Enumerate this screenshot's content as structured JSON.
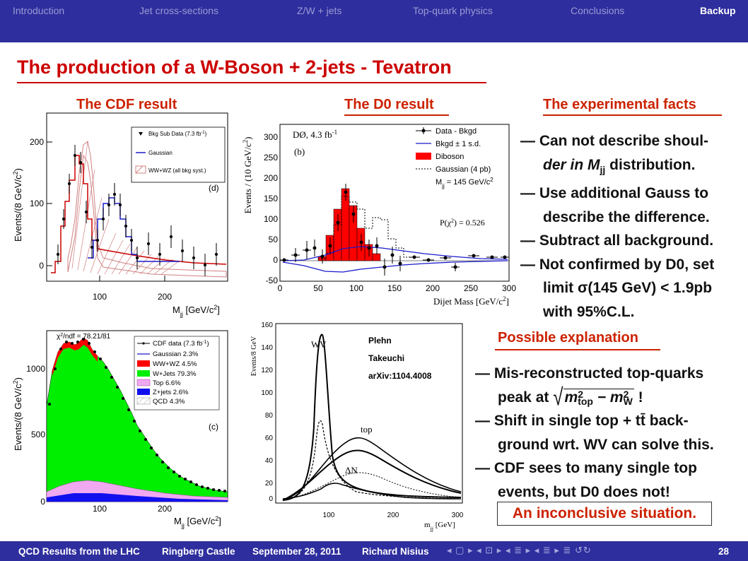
{
  "navigation": {
    "items": [
      "Introduction",
      "Jet cross-sections",
      "Z/W + jets",
      "Top-quark physics",
      "Conclusions",
      "Backup"
    ],
    "active": "Backup"
  },
  "slide": {
    "title": "The production of a W-Boson + 2-jets - Tevatron",
    "cdf_heading": "The CDF result",
    "d0_heading": "The D0 result",
    "facts_heading": "The experimental facts",
    "facts": [
      "— Can not describe shoul-",
      "der in M",
      "jj",
      " distribution.",
      "— Use additional Gauss to",
      "describe the difference.",
      "— Subtract all background.",
      "— Not confirmed by D0, set",
      "limit σ(145 GeV) < 1.9pb",
      "with 95%C.L."
    ],
    "explanation_heading": "Possible explanation",
    "explanation": [
      "— Mis-reconstructed top-quarks",
      "peak at",
      "m",
      "top",
      "2",
      " − m",
      "W",
      "2",
      " !",
      "— Shift in single top + tt̄ back-",
      "ground wrt. WV can solve this.",
      "— CDF sees to many single top",
      "events, but D0 does not!"
    ],
    "conclusion": "An inconclusive situation."
  },
  "figures": {
    "cdf_top": {
      "ylabel": "Events/(8 GeV/c",
      "ylabel_sup": "2",
      "ylabel_end": ")",
      "xlabel": "M",
      "xlabel_sub": "jj",
      "xlabel_end": " [GeV/c",
      "xlabel_sup": "2",
      "xlabel_close": "]",
      "panel": "(d)",
      "yticks": [
        "200",
        "100",
        "0"
      ],
      "xticks": [
        "100",
        "200"
      ],
      "legend": [
        "Bkg Sub Data (7.3 fb",
        "-1",
        ")",
        "Gaussian",
        "WW+WZ (all bkg syst.)"
      ]
    },
    "d0_top": {
      "ylabel": "Events / (10 GeV/c",
      "ylabel_sup": "2",
      "ylabel_end": ")",
      "xlabel": "Dijet Mass [GeV/c",
      "xlabel_sup": "2",
      "xlabel_end": "]",
      "experiment": "DØ, 4.3 fb",
      "experiment_sup": "-1",
      "panel": "(b)",
      "pchi2": "P(χ",
      "pchi2_sup": "2",
      "pchi2_end": ") = 0.526",
      "yticks": [
        "300",
        "250",
        "200",
        "150",
        "100",
        "50",
        "0",
        "-50"
      ],
      "xticks": [
        "0",
        "50",
        "100",
        "150",
        "200",
        "250",
        "300"
      ],
      "legend": [
        "Data - Bkgd",
        "Bkgd ± 1 s.d.",
        "Diboson",
        "Gaussian (4 pb)",
        "M",
        "jj",
        " = 145 GeV/c",
        "2"
      ]
    },
    "cdf_bottom": {
      "ylabel": "Events/(8 GeV/c",
      "ylabel_sup": "2",
      "ylabel_end": ")",
      "xlabel": "M",
      "xlabel_sub": "jj",
      "xlabel_end": " [GeV/c",
      "xlabel_sup": "2",
      "xlabel_close": "]",
      "chi2": "χ",
      "chi2_sup": "2",
      "chi2_end": "/ndf = 78.21/81",
      "panel": "(c)",
      "yticks": [
        "1000",
        "500",
        "0"
      ],
      "xticks": [
        "100",
        "200"
      ],
      "legend": [
        "CDF data (7.3 fb",
        "-1",
        ")",
        "Gaussian  2.3%",
        "WW+WZ 4.5%",
        "W+Jets 79.3%",
        "Top 6.6%",
        "Z+jets 2.6%",
        "QCD 4.3%"
      ]
    },
    "plehn": {
      "ylabel": "Events/8 GeV",
      "xlabel": "m",
      "xlabel_sub": "jj",
      "xlabel_end": " [GeV]",
      "label_wv": "WV",
      "label_top": "top",
      "label_dn": "ΔN",
      "authors": [
        "Plehn",
        "Takeuchi",
        "arXiv:1104.4008"
      ],
      "yticks": [
        "160",
        "140",
        "120",
        "100",
        "80",
        "60",
        "40",
        "20",
        "0"
      ],
      "xticks": [
        "100",
        "200",
        "300"
      ]
    }
  },
  "colors": {
    "bar": "#2e2e9e",
    "title": "#cc0000",
    "heading": "#cc2200",
    "wjets": "#00ee00",
    "diboson": "#ff0000",
    "gaussian": "#1a1acc"
  },
  "footer": {
    "items": [
      "QCD Results from the LHC",
      "Ringberg Castle",
      "September 28, 2011",
      "Richard Nisius"
    ],
    "nav_glyphs": "◂ ▢ ▸ ◂ ⊡ ▸ ◂ ≣ ▸ ◂ ≣ ▸   ≣   ↺↻",
    "page": "28"
  }
}
